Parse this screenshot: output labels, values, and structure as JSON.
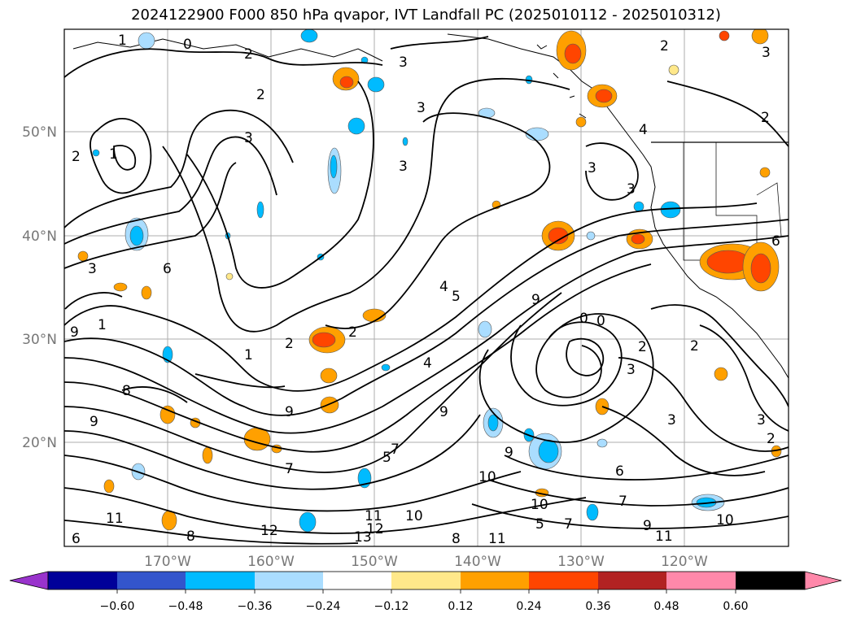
{
  "title": "2024122900 F000 850 hPa qvapor, IVT Landfall PC (2025010112 - 2025010312)",
  "latitude_labels": [
    "50°N",
    "40°N",
    "30°N",
    "20°N"
  ],
  "longitude_labels": [
    "170°W",
    "160°W",
    "150°W",
    "140°W",
    "130°W",
    "120°W"
  ],
  "colorbar": {
    "colors": [
      "#9933cc",
      "#000099",
      "#3355cc",
      "#00bbff",
      "#aaddff",
      "#ffffff",
      "#ffe88a",
      "#ffa000",
      "#ff4500",
      "#b22222",
      "#ff88aa"
    ],
    "tick_labels": [
      "−0.60",
      "−0.48",
      "−0.36",
      "−0.24",
      "−0.12",
      "0.12",
      "0.24",
      "0.36",
      "0.48",
      "0.60"
    ]
  },
  "contour_labels": [
    "0",
    "1",
    "2",
    "3",
    "3",
    "2",
    "2",
    "3",
    "3",
    "4",
    "3",
    "1",
    "2",
    "2",
    "3",
    "3",
    "9",
    "2",
    "2",
    "1",
    "0",
    "0",
    "2",
    "3",
    "3",
    "2",
    "9",
    "8",
    "9",
    "7",
    "9",
    "10",
    "11",
    "12",
    "13",
    "11",
    "12",
    "10",
    "8",
    "7",
    "9",
    "10",
    "11",
    "10",
    "3",
    "2",
    "1",
    "8",
    "11",
    "7",
    "6",
    "5",
    "6",
    "3",
    "4",
    "4",
    "5",
    "7",
    "9",
    "6",
    "9",
    "5",
    "6"
  ]
}
